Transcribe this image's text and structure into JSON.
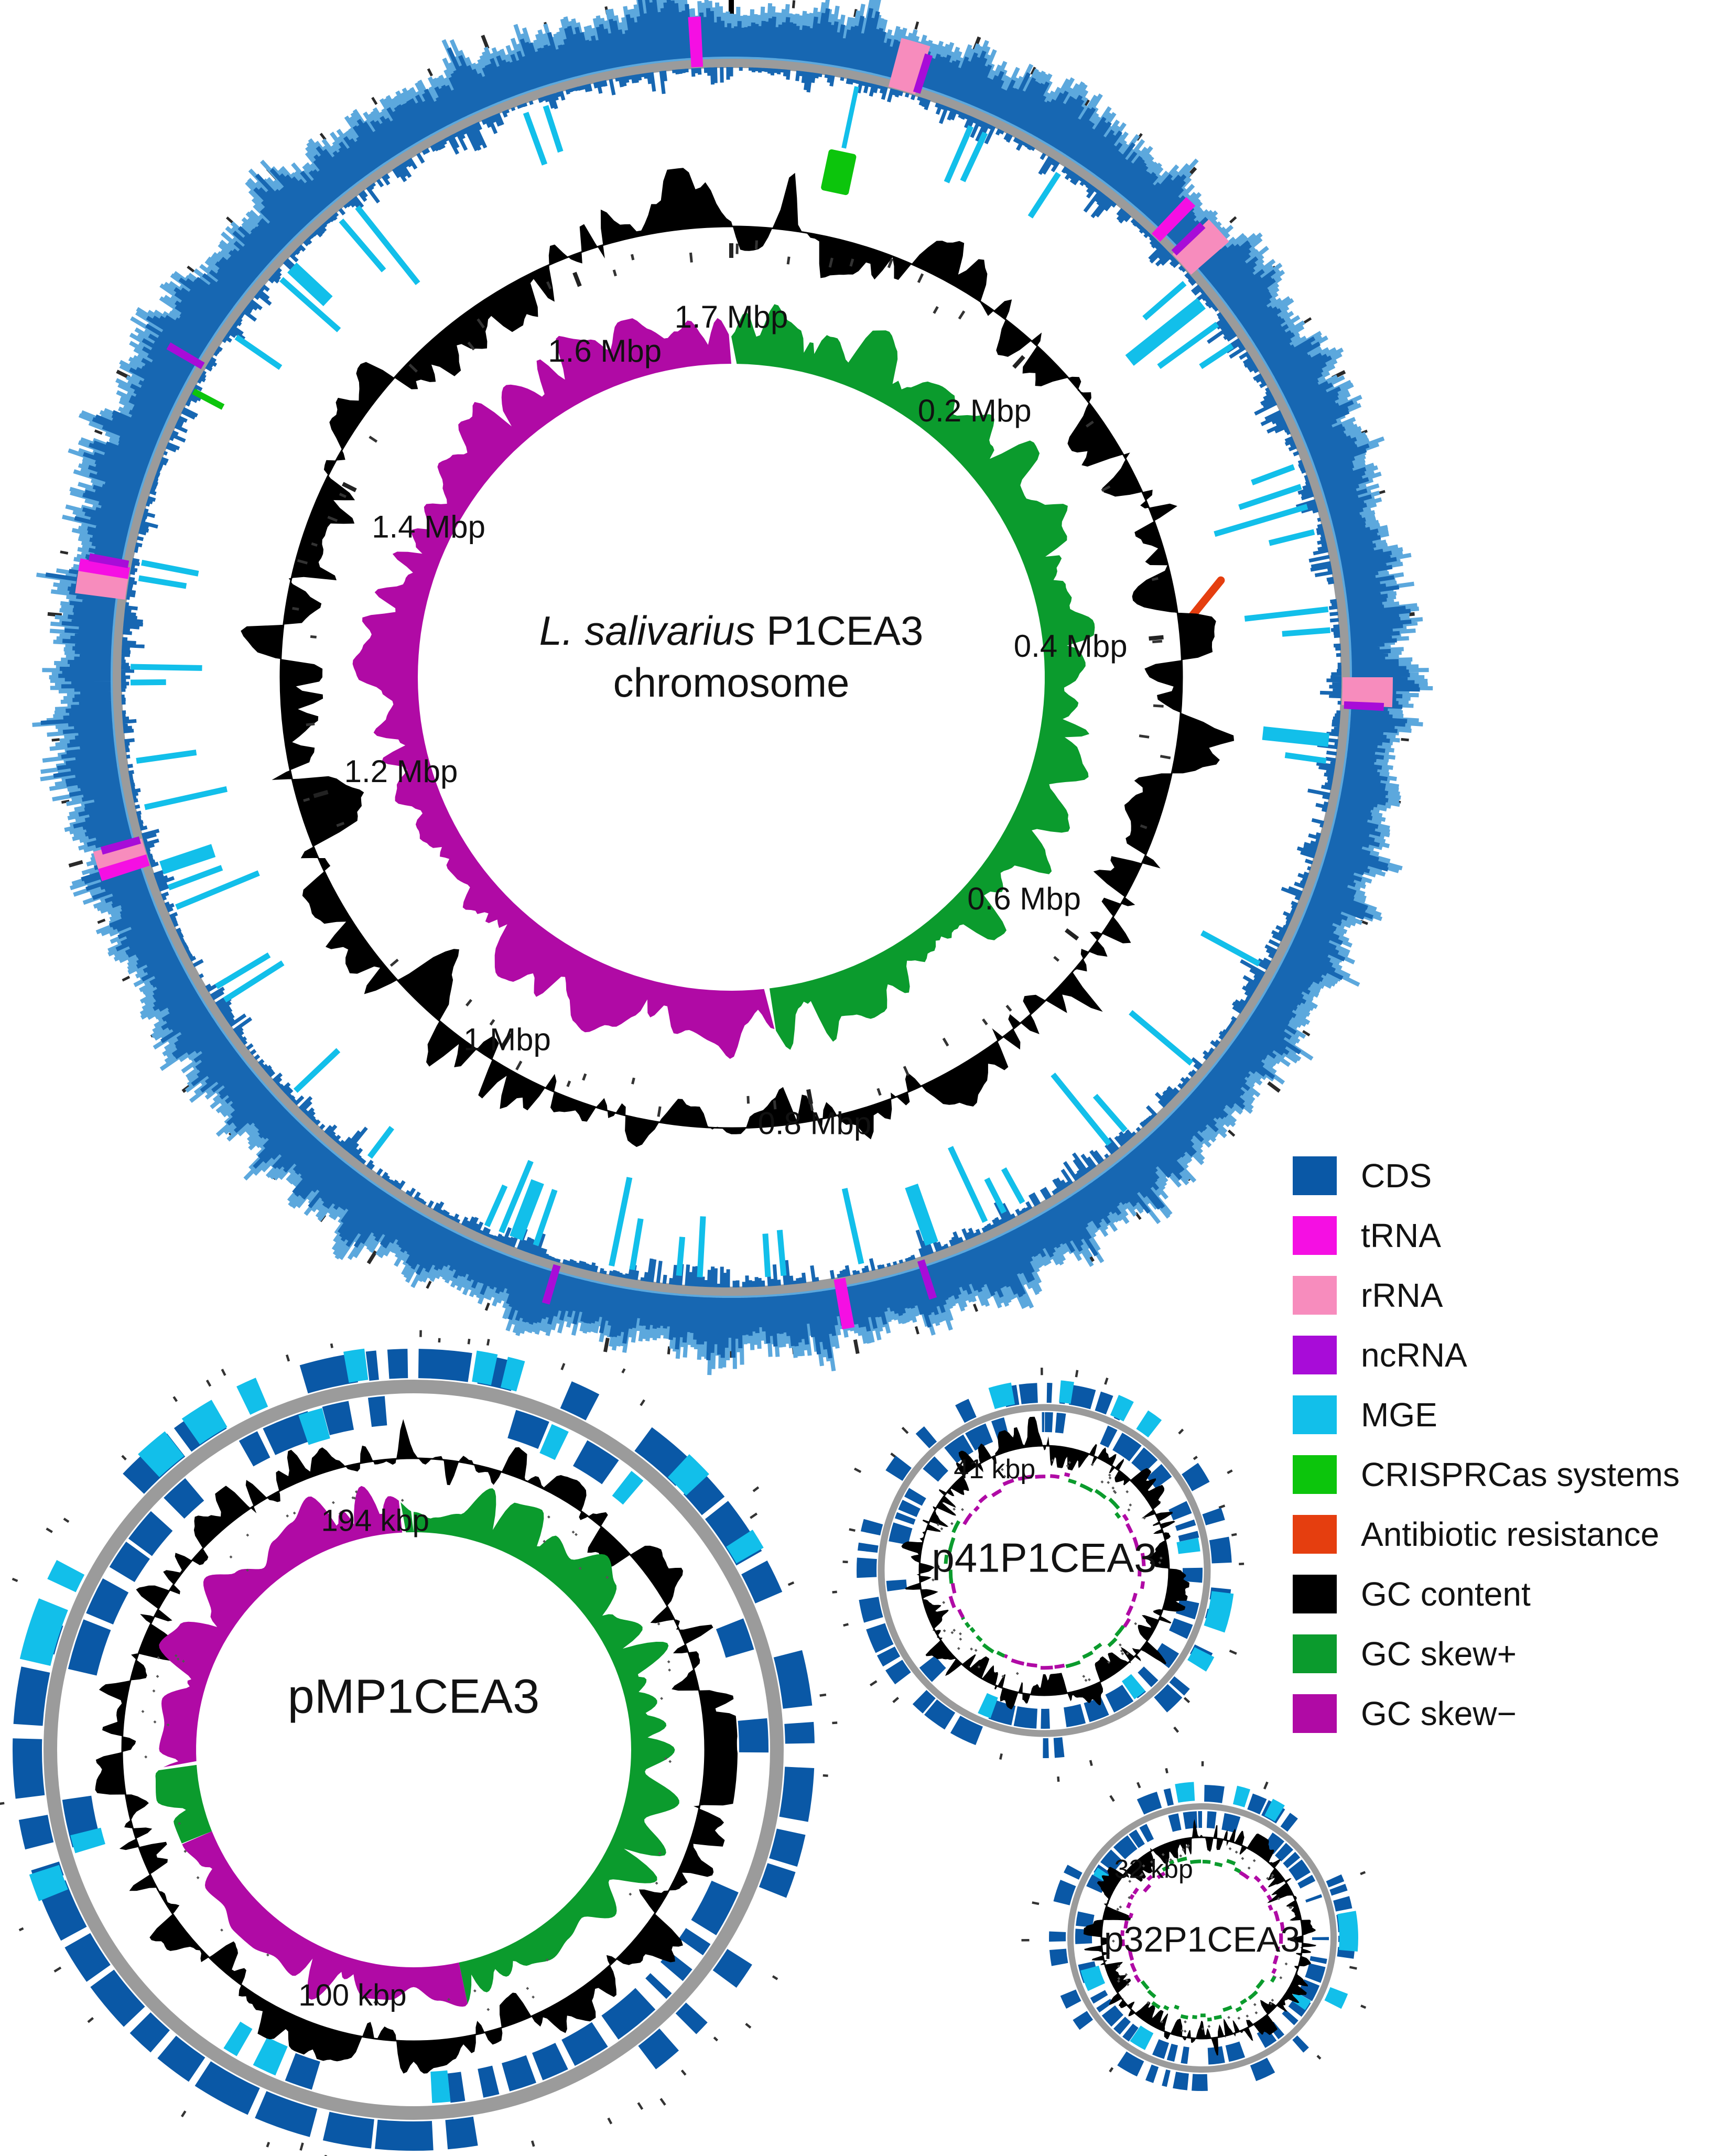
{
  "colors": {
    "cds": "#0A58A6",
    "cds_bright": "#1767B2",
    "cds_light": "#5CA8DD",
    "trna": "#F50FE3",
    "rrna": "#F78CBD",
    "ncrna": "#A80CD8",
    "mge": "#12BFEA",
    "crispr": "#0CC50C",
    "amr": "#E53E0F",
    "gc": "#000000",
    "skew_plus": "#0B9B2D",
    "skew_minus": "#B00AA5",
    "backbone": "#9B9B9B",
    "tick": "#2A2A2A",
    "text": "#111111",
    "background": "#FFFFFF"
  },
  "legend": {
    "items": [
      {
        "id": "cds",
        "label": "CDS",
        "color": "#0A58A6"
      },
      {
        "id": "trna",
        "label": "tRNA",
        "color": "#F50FE3"
      },
      {
        "id": "rrna",
        "label": "rRNA",
        "color": "#F78CBD"
      },
      {
        "id": "ncrna",
        "label": "ncRNA",
        "color": "#A80CD8"
      },
      {
        "id": "mge",
        "label": "MGE",
        "color": "#12BFEA"
      },
      {
        "id": "crispr",
        "label": "CRISPRCas systems",
        "color": "#0CC50C"
      },
      {
        "id": "amr",
        "label": "Antibiotic resistance",
        "color": "#E53E0F"
      },
      {
        "id": "gc-content",
        "label": "GC content",
        "color": "#000000"
      },
      {
        "id": "gc-skew-plus",
        "label": "GC skew+",
        "color": "#0B9B2D"
      },
      {
        "id": "gc-skew-minus",
        "label": "GC skew−",
        "color": "#B00AA5"
      }
    ]
  },
  "chart_data": {
    "type": "circular-genome-map",
    "maps": [
      {
        "id": "chromosome",
        "name": "L. salivarius P1CEA3 chromosome",
        "title_italic": "L. salivarius",
        "title_regular": " P1CEA3",
        "title_line2": "chromosome",
        "total": 1.7,
        "unit": "Mbp",
        "tick_labels": [
          {
            "value": 0.2,
            "label": "0.2 Mbp"
          },
          {
            "value": 0.4,
            "label": "0.4 Mbp"
          },
          {
            "value": 0.6,
            "label": "0.6 Mbp"
          },
          {
            "value": 0.8,
            "label": "0.8 Mbp"
          },
          {
            "value": 1,
            "label": "1 Mbp"
          },
          {
            "value": 1.2,
            "label": "1.2 Mbp"
          },
          {
            "value": 1.4,
            "label": "1.4 Mbp"
          },
          {
            "value": 1.6,
            "label": "1.6 Mbp"
          },
          {
            "value": 1.7,
            "label": "1.7 Mbp"
          }
        ],
        "rings_outer_to_inner": [
          "CDS forward/reverse",
          "tRNA/rRNA/ncRNA marks",
          "backbone",
          "MGE",
          "CRISPRCas systems",
          "antibiotic resistance",
          "GC content",
          "GC skew"
        ],
        "gc_skew": {
          "plus_deg": [
            0,
            173
          ],
          "minus_deg": [
            173,
            360
          ]
        },
        "features": {
          "trna_deg": [
            356.8,
            44,
            169.8,
            252.6,
            279.8
          ],
          "rrna_deg": [
            16.2,
            47.5,
            91.3,
            253.4,
            278.6
          ],
          "ncrna_deg": [
            17.6,
            46.2,
            92.6,
            162,
            196.5,
            254.6,
            280.6,
            300.5
          ],
          "mge_deg": [
            23.5,
            25,
            33,
            49,
            51.5,
            54,
            56.5,
            69.5,
            71.5,
            73.5,
            76,
            83.5,
            85.5,
            96,
            98,
            118.5,
            130,
            139,
            141,
            151,
            153,
            155,
            160.5,
            167.5,
            175,
            176.5,
            183,
            185,
            189.5,
            191.5,
            199,
            201,
            202.5,
            204,
            217,
            226.5,
            237.5,
            239,
            247.5,
            249.5,
            251.5,
            257.5,
            262,
            269.5,
            271,
            279.5,
            281,
            304.5,
            311.5,
            313,
            319.5,
            321.5,
            340,
            342
          ],
          "crispr_block_deg": 12,
          "crispr_tick_deg": 298,
          "amr_deg": 81
        }
      },
      {
        "id": "pMP1CEA3",
        "title": "pMP1CEA3",
        "total": 194,
        "unit": "kbp",
        "tick_labels": [
          {
            "value": 194,
            "label": "194 kbp"
          },
          {
            "value": 100,
            "label": "100 kbp"
          }
        ],
        "rings_outer_to_inner": [
          "CDS forward/reverse",
          "MGE",
          "backbone",
          "GC content",
          "GC skew"
        ],
        "mge_spans_out": [
          [
            283,
            292
          ],
          [
            295,
            298
          ],
          [
            317,
            322
          ],
          [
            325,
            330
          ],
          [
            334,
            337
          ],
          [
            350,
            353
          ],
          [
            9,
            12
          ],
          [
            13.5,
            16
          ],
          [
            43,
            47
          ],
          [
            57,
            60
          ],
          [
            248,
            252
          ]
        ],
        "mge_spans_in": [
          [
            341,
            345
          ],
          [
            23,
            26
          ],
          [
            38,
            40.5
          ],
          [
            174,
            177
          ],
          [
            203,
            207
          ],
          [
            210,
            212.5
          ],
          [
            253,
            256
          ]
        ],
        "skew_segments": [
          [
            0,
            168,
            "+"
          ],
          [
            168,
            248,
            "-"
          ],
          [
            248,
            266,
            "+"
          ],
          [
            266,
            357,
            "-"
          ],
          [
            357,
            360,
            "+"
          ]
        ]
      },
      {
        "id": "p41P1CEA3",
        "title": "p41P1CEA3",
        "total": 41,
        "unit": "kbp",
        "tick_labels": [
          {
            "value": 41,
            "label": "41 kbp"
          }
        ],
        "rings_outer_to_inner": [
          "CDS forward/reverse",
          "MGE",
          "backbone",
          "GC content",
          "GC skew"
        ],
        "mge_spans_out": [
          [
            343,
            350
          ],
          [
            5,
            9
          ],
          [
            23,
            28
          ],
          [
            33,
            38
          ],
          [
            97,
            109
          ],
          [
            117,
            122
          ]
        ],
        "mge_spans_in": [
          [
            78,
            83
          ],
          [
            140,
            145
          ],
          [
            200,
            205
          ]
        ],
        "skew_segments": [
          [
            345,
            15,
            "-"
          ],
          [
            15,
            55,
            "+"
          ],
          [
            55,
            125,
            "-"
          ],
          [
            125,
            168,
            "+"
          ],
          [
            168,
            205,
            "-"
          ],
          [
            205,
            240,
            "+"
          ],
          [
            240,
            262,
            "-"
          ],
          [
            262,
            300,
            "+"
          ],
          [
            300,
            345,
            "-"
          ]
        ]
      },
      {
        "id": "p32P1CEA3",
        "title": "p32P1CEA3",
        "total": 32,
        "unit": "kbp",
        "tick_labels": [
          {
            "value": 32,
            "label": "32 kbp"
          }
        ],
        "rings_outer_to_inner": [
          "CDS forward/reverse",
          "MGE",
          "backbone",
          "GC content",
          "GC skew"
        ],
        "mge_spans_out": [
          [
            350,
            357
          ],
          [
            13,
            18
          ],
          [
            27,
            32
          ],
          [
            80,
            95
          ],
          [
            111,
            117
          ]
        ],
        "mge_spans_in": [
          [
            207,
            215
          ],
          [
            245,
            255
          ],
          [
            120,
            125
          ],
          [
            300,
            304
          ]
        ],
        "skew_segments": [
          [
            330,
            30,
            "+"
          ],
          [
            30,
            118,
            "-"
          ],
          [
            118,
            235,
            "+"
          ],
          [
            235,
            330,
            "-"
          ]
        ]
      }
    ]
  }
}
